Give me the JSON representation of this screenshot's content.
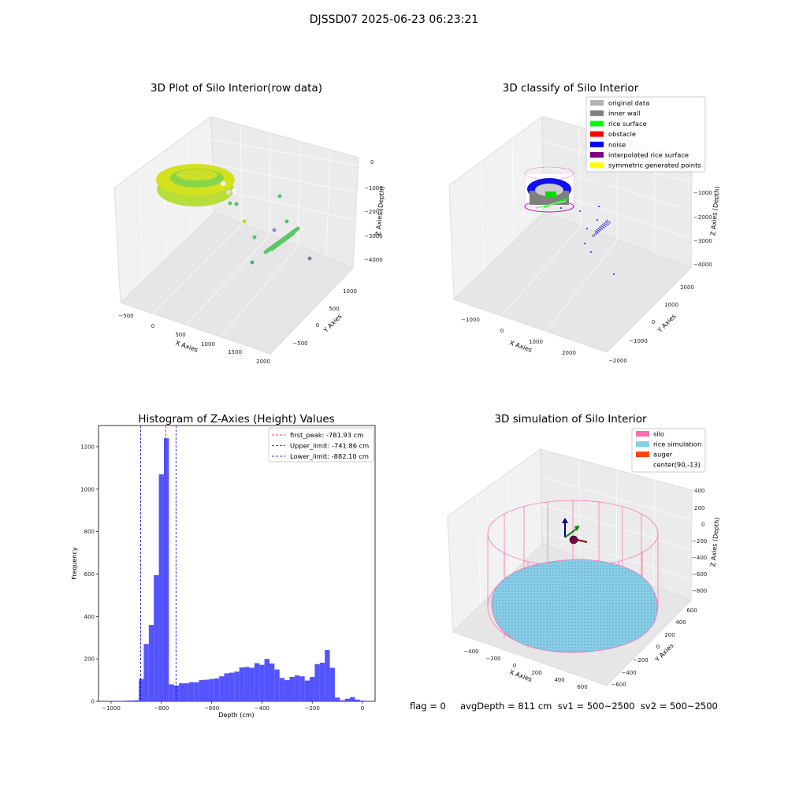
{
  "figure": {
    "suptitle": "DJSSD07 2025-06-23 06:23:21",
    "status_line": "flag = 0     avgDepth = 811 cm  sv1 = 500~2500  sv2 = 500~2500"
  },
  "colors": {
    "original_data": "#b3b3b3",
    "inner_wall": "#808080",
    "rice_surface": "#00ff00",
    "obstacle": "#ff0000",
    "noise": "#0000ff",
    "interpolated_rice_surface": "#800080",
    "symmetric_generated_points": "#ffff00",
    "silo": "#ff69b4",
    "rice_simulation": "#87ceeb",
    "auger": "#ff4500",
    "histogram_bars": "#4b4bff",
    "peak_line": "#ff0000",
    "limit_line": "#0000cc"
  },
  "panels": {
    "raw": {
      "title": "3D Plot of Silo Interior(row data)",
      "xlabel": "X Axies",
      "ylabel": "Y Axies",
      "zlabel": "Z Axies (Depth)",
      "xticks": [
        "-500",
        "0",
        "500",
        "1000",
        "1500",
        "2000"
      ],
      "yticks": [
        "-500",
        "0",
        "500",
        "1000"
      ],
      "zticks": [
        "0",
        "-1000",
        "-2000",
        "-3000",
        "-4000"
      ]
    },
    "classify": {
      "title": "3D classify of Silo Interior",
      "xlabel": "X Axies",
      "ylabel": "Y Axies",
      "zlabel": "Z Axies (Depth)",
      "xticks": [
        "-1000",
        "0",
        "1000",
        "2000"
      ],
      "yticks": [
        "-2000",
        "-1000",
        "0",
        "1000",
        "2000"
      ],
      "zticks": [
        "0",
        "-1000",
        "-2000",
        "-3000",
        "-4000"
      ],
      "legend": [
        {
          "label": "original data",
          "color": "#b3b3b3"
        },
        {
          "label": "inner wall",
          "color": "#808080"
        },
        {
          "label": "rice surface",
          "color": "#00ff00"
        },
        {
          "label": "obstacle",
          "color": "#ff0000"
        },
        {
          "label": "noise",
          "color": "#0000ff"
        },
        {
          "label": "interpolated rice surface",
          "color": "#800080"
        },
        {
          "label": "symmetric generated points",
          "color": "#ffff00"
        }
      ]
    },
    "simulation": {
      "title": "3D simulation of Silo Interior",
      "xlabel": "X Axies",
      "ylabel": "Y Axies",
      "zlabel": "Z Axies (Depth)",
      "xticks": [
        "-400",
        "-200",
        "0",
        "200",
        "400",
        "600"
      ],
      "yticks": [
        "-600",
        "-400",
        "-200",
        "0",
        "200",
        "400",
        "600"
      ],
      "zticks": [
        "400",
        "200",
        "0",
        "-200",
        "-400",
        "-600",
        "-800"
      ],
      "legend": [
        {
          "label": "silo",
          "color": "#ff69b4"
        },
        {
          "label": "rice simulation",
          "color": "#87ceeb"
        },
        {
          "label": "auger",
          "color": "#ff4500"
        },
        {
          "label": "center(90,-13)",
          "color": ""
        }
      ]
    }
  },
  "chart_data": {
    "type": "bar",
    "title": "Histogram of Z-Axies (Height) Values",
    "xlabel": "Depth (cm)",
    "ylabel": "Frequency",
    "xlim": [
      -1050,
      50
    ],
    "ylim": [
      0,
      1300
    ],
    "xticks": [
      -1000,
      -800,
      -600,
      -400,
      -200,
      0
    ],
    "yticks": [
      0,
      200,
      400,
      600,
      800,
      1000,
      1200
    ],
    "bin_width": 20,
    "bin_starts": [
      -1010,
      -990,
      -970,
      -950,
      -930,
      -910,
      -890,
      -870,
      -850,
      -830,
      -810,
      -790,
      -770,
      -750,
      -730,
      -710,
      -690,
      -670,
      -650,
      -630,
      -610,
      -590,
      -570,
      -550,
      -530,
      -510,
      -490,
      -470,
      -450,
      -430,
      -410,
      -390,
      -370,
      -350,
      -330,
      -310,
      -290,
      -270,
      -250,
      -230,
      -210,
      -190,
      -170,
      -150,
      -130,
      -110,
      -90,
      -70,
      -50,
      -30,
      -10
    ],
    "counts": [
      1,
      2,
      1,
      3,
      4,
      5,
      105,
      270,
      360,
      595,
      1070,
      1240,
      80,
      75,
      85,
      85,
      90,
      90,
      100,
      102,
      105,
      108,
      118,
      132,
      135,
      140,
      160,
      162,
      158,
      180,
      172,
      200,
      178,
      150,
      110,
      100,
      115,
      122,
      118,
      98,
      115,
      175,
      182,
      242,
      158,
      18,
      5,
      12,
      20,
      8,
      3
    ],
    "vlines": [
      {
        "label": "first_peak: -781.93 cm",
        "x": -781.93,
        "color": "#ff0000"
      },
      {
        "label": "Upper_limit: -741.86 cm",
        "x": -741.86,
        "color": "#0000cc"
      },
      {
        "label": "Lower_limit: -882.10 cm",
        "x": -882.1,
        "color": "#0000cc"
      }
    ]
  }
}
